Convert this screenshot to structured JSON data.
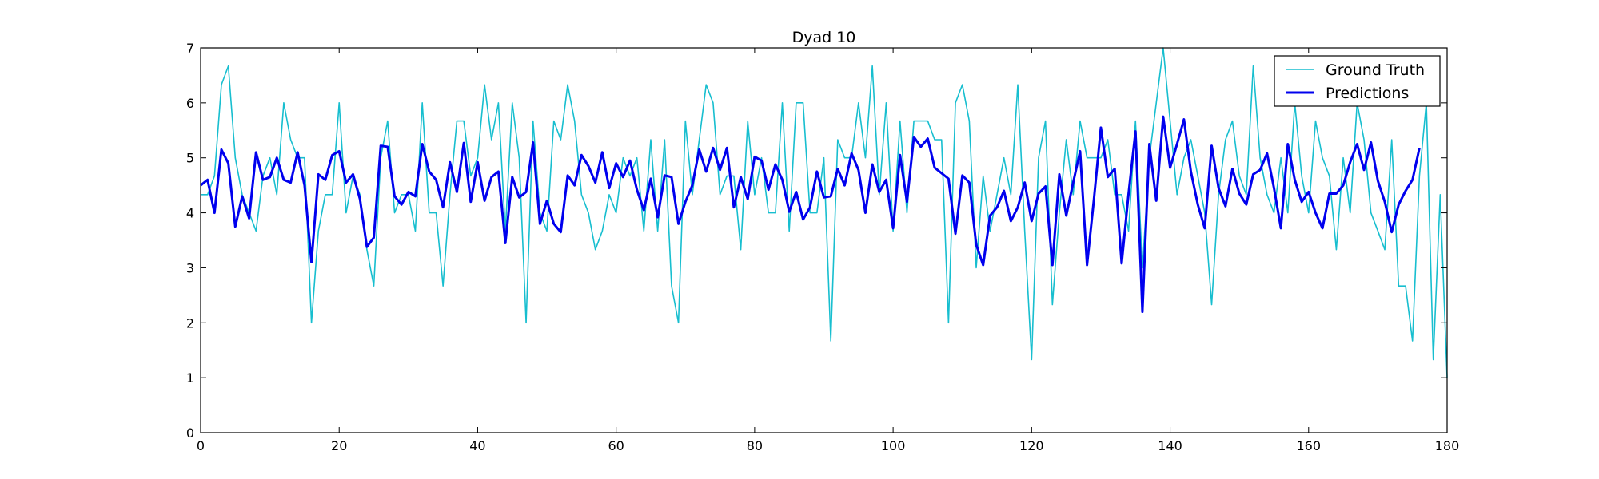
{
  "chart_data": {
    "type": "line",
    "title": "Dyad 10",
    "xlabel": "",
    "ylabel": "",
    "xlim": [
      0,
      180
    ],
    "ylim": [
      0,
      7
    ],
    "x_ticks": [
      0,
      20,
      40,
      60,
      80,
      100,
      120,
      140,
      160,
      180
    ],
    "y_ticks": [
      0,
      1,
      2,
      3,
      4,
      5,
      6,
      7
    ],
    "grid": false,
    "legend_position": "top-right",
    "series": [
      {
        "name": "Ground Truth",
        "color": "#17becf",
        "values": [
          4.33,
          4.33,
          4.67,
          6.33,
          6.67,
          5.0,
          4.33,
          4.0,
          3.67,
          4.67,
          5.0,
          4.33,
          6.0,
          5.33,
          5.0,
          5.0,
          2.0,
          3.67,
          4.33,
          4.33,
          6.0,
          4.0,
          4.67,
          4.33,
          3.33,
          2.67,
          5.0,
          5.67,
          4.0,
          4.33,
          4.33,
          3.67,
          6.0,
          4.0,
          4.0,
          2.67,
          4.33,
          5.67,
          5.67,
          4.67,
          5.0,
          6.33,
          5.33,
          6.0,
          3.67,
          6.0,
          5.0,
          2.0,
          5.67,
          4.0,
          3.67,
          5.67,
          5.33,
          6.33,
          5.67,
          4.33,
          4.0,
          3.33,
          3.67,
          4.33,
          4.0,
          5.0,
          4.67,
          5.0,
          3.67,
          5.33,
          3.67,
          5.33,
          2.67,
          2.0,
          5.67,
          4.33,
          5.33,
          6.33,
          6.0,
          4.33,
          4.67,
          4.67,
          3.33,
          5.67,
          4.33,
          5.0,
          4.0,
          4.0,
          6.0,
          3.67,
          6.0,
          6.0,
          4.0,
          4.0,
          5.0,
          1.67,
          5.33,
          5.0,
          5.0,
          6.0,
          5.0,
          6.67,
          4.33,
          6.0,
          3.67,
          5.67,
          4.0,
          5.67,
          5.67,
          5.67,
          5.33,
          5.33,
          2.0,
          6.0,
          6.33,
          5.67,
          3.0,
          4.67,
          3.67,
          4.33,
          5.0,
          4.33,
          6.33,
          3.67,
          1.33,
          5.0,
          5.67,
          2.33,
          4.0,
          5.33,
          4.33,
          5.67,
          5.0,
          5.0,
          5.0,
          5.33,
          4.33,
          4.33,
          3.67,
          5.67,
          3.0,
          5.0,
          6.0,
          7.0,
          5.67,
          4.33,
          5.0,
          5.33,
          4.67,
          4.0,
          2.33,
          4.33,
          5.33,
          5.67,
          4.67,
          4.33,
          6.67,
          5.0,
          4.33,
          4.0,
          5.0,
          4.0,
          6.0,
          4.67,
          4.0,
          5.67,
          5.0,
          4.67,
          3.33,
          5.0,
          4.0,
          6.0,
          5.33,
          4.0,
          3.67,
          3.33,
          5.33,
          2.67,
          2.67,
          1.67,
          4.67,
          6.0,
          1.33,
          4.33,
          1.0
        ]
      },
      {
        "name": "Predictions",
        "color": "#0000ee",
        "values": [
          4.5,
          4.6,
          4.0,
          5.15,
          4.9,
          3.75,
          4.3,
          3.9,
          5.1,
          4.6,
          4.65,
          5.0,
          4.6,
          4.55,
          5.1,
          4.5,
          3.1,
          4.7,
          4.6,
          5.05,
          5.12,
          4.55,
          4.7,
          4.25,
          3.38,
          3.55,
          5.22,
          5.2,
          4.3,
          4.15,
          4.38,
          4.3,
          5.25,
          4.75,
          4.6,
          4.1,
          4.92,
          4.38,
          5.27,
          4.2,
          4.92,
          4.22,
          4.65,
          4.75,
          3.45,
          4.65,
          4.28,
          4.38,
          5.28,
          3.8,
          4.22,
          3.8,
          3.65,
          4.68,
          4.5,
          5.05,
          4.85,
          4.55,
          5.1,
          4.45,
          4.9,
          4.65,
          4.95,
          4.42,
          4.05,
          4.62,
          3.92,
          4.68,
          4.65,
          3.8,
          4.2,
          4.5,
          5.15,
          4.75,
          5.18,
          4.78,
          5.18,
          4.1,
          4.65,
          4.25,
          5.02,
          4.95,
          4.42,
          4.88,
          4.6,
          4.02,
          4.38,
          3.88,
          4.1,
          4.75,
          4.28,
          4.3,
          4.8,
          4.5,
          5.08,
          4.78,
          4.0,
          4.88,
          4.38,
          4.6,
          3.72,
          5.05,
          4.2,
          5.38,
          5.2,
          5.35,
          4.82,
          4.72,
          4.62,
          3.62,
          4.68,
          4.55,
          3.42,
          3.05,
          3.95,
          4.1,
          4.4,
          3.85,
          4.1,
          4.55,
          3.85,
          4.35,
          4.48,
          3.05,
          4.7,
          3.95,
          4.55,
          5.12,
          3.05,
          4.25,
          5.55,
          4.65,
          4.8,
          3.08,
          4.35,
          5.48,
          2.2,
          5.25,
          4.22,
          5.75,
          4.82,
          5.25,
          5.7,
          4.75,
          4.15,
          3.72,
          5.22,
          4.45,
          4.12,
          4.8,
          4.35,
          4.15,
          4.7,
          4.78,
          5.08,
          4.45,
          3.72,
          5.25,
          4.6,
          4.2,
          4.38,
          4.0,
          3.72,
          4.35,
          4.35,
          4.5,
          4.92,
          5.25,
          4.78,
          5.28,
          4.58,
          4.2,
          3.65,
          4.15,
          4.4,
          4.6,
          5.18
        ]
      }
    ]
  }
}
